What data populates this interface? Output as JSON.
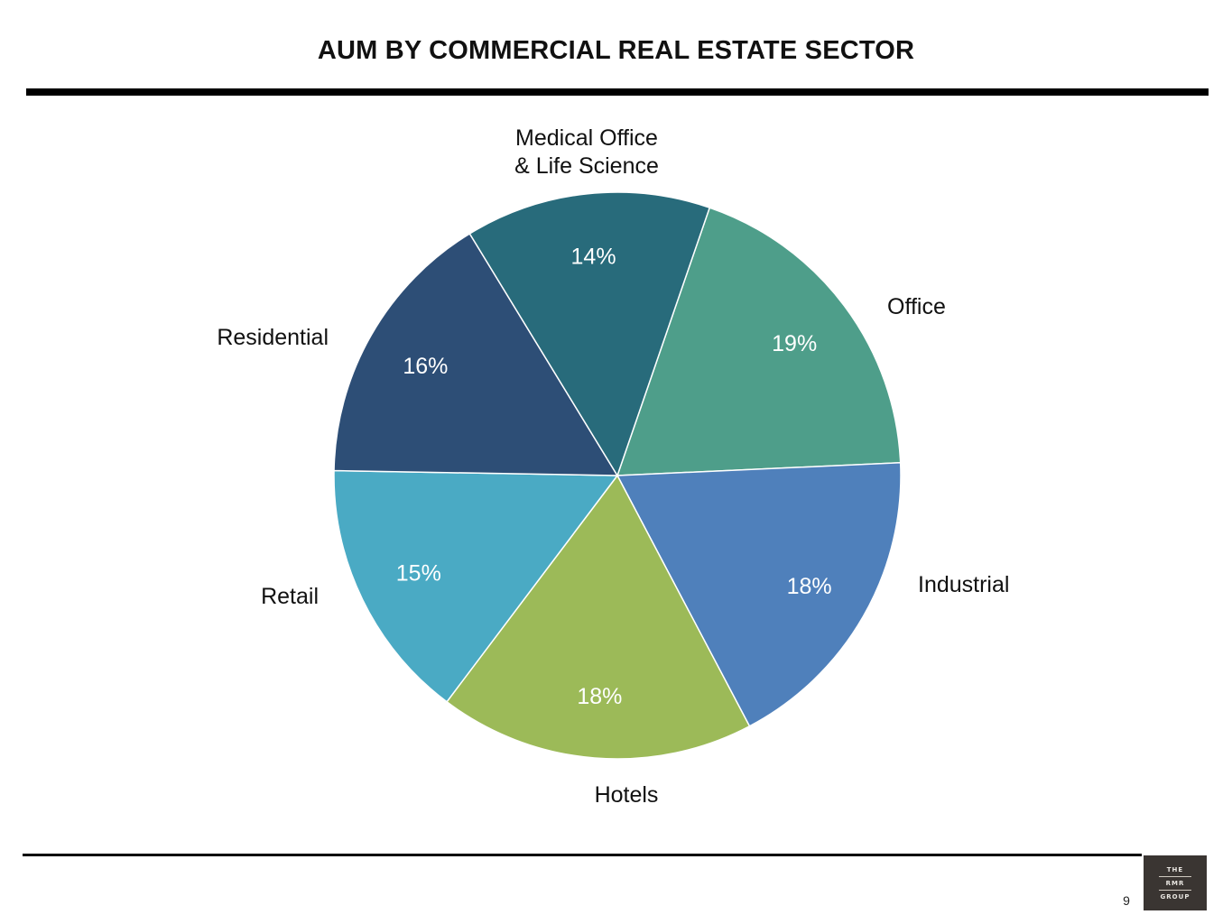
{
  "page": {
    "title": "AUM BY COMMERCIAL REAL ESTATE SECTOR",
    "page_number": "9"
  },
  "logo": {
    "line1": "THE",
    "line2": "RMR",
    "line3": "GROUP",
    "background_color": "#3a3532"
  },
  "chart_data": {
    "type": "pie",
    "title": "AUM BY COMMERCIAL REAL ESTATE SECTOR",
    "unit": "%",
    "start_angle_deg": 19,
    "direction": "clockwise",
    "slices": [
      {
        "key": "office",
        "label": "Office",
        "value": 19,
        "value_label": "19%",
        "color": "#4e9e8a"
      },
      {
        "key": "industrial",
        "label": "Industrial",
        "value": 18,
        "value_label": "18%",
        "color": "#4f80bb"
      },
      {
        "key": "hotels",
        "label": "Hotels",
        "value": 18,
        "value_label": "18%",
        "color": "#9cba58"
      },
      {
        "key": "retail",
        "label": "Retail",
        "value": 15,
        "value_label": "15%",
        "color": "#4aaac4"
      },
      {
        "key": "residential",
        "label": "Residential",
        "value": 16,
        "value_label": "16%",
        "color": "#2d4e76"
      },
      {
        "key": "medical",
        "label": "Medical Office\n& Life Science",
        "label_lines": [
          "Medical Office",
          "& Life Science"
        ],
        "value": 14,
        "value_label": "14%",
        "color": "#286b7b"
      }
    ],
    "legend": "none",
    "labels": "outside slice names, inside percentages"
  }
}
